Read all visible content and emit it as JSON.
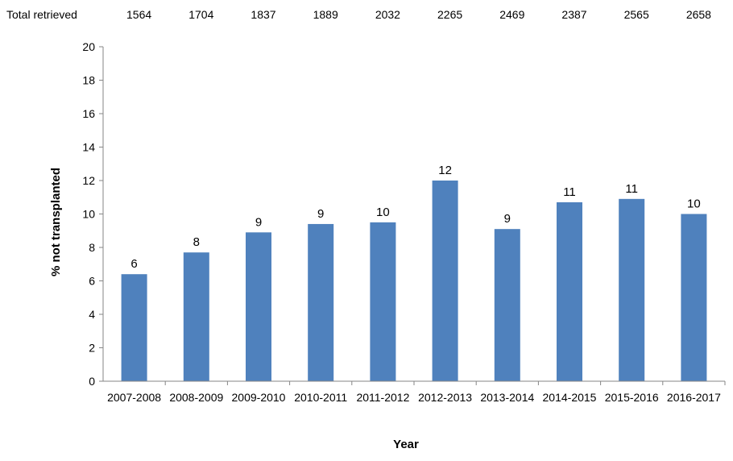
{
  "chart_data": {
    "type": "bar",
    "categories": [
      "2007-2008",
      "2008-2009",
      "2009-2010",
      "2010-2011",
      "2011-2012",
      "2012-2013",
      "2013-2014",
      "2014-2015",
      "2015-2016",
      "2016-2017"
    ],
    "values": [
      6.4,
      7.7,
      8.9,
      9.4,
      9.5,
      12.0,
      9.1,
      10.7,
      10.9,
      10.0
    ],
    "data_labels": [
      "6",
      "8",
      "9",
      "9",
      "10",
      "12",
      "9",
      "11",
      "11",
      "10"
    ],
    "totals_label": "Total retrieved",
    "totals": [
      "1564",
      "1704",
      "1837",
      "1889",
      "2032",
      "2265",
      "2469",
      "2387",
      "2565",
      "2658"
    ],
    "xlabel": "Year",
    "ylabel": "% not transplanted",
    "ylim": [
      0,
      20
    ],
    "yticks": [
      "0",
      "2",
      "4",
      "6",
      "8",
      "10",
      "12",
      "14",
      "16",
      "18",
      "20"
    ],
    "bar_color": "#4f81bd",
    "axis_color": "#868686",
    "grid": false,
    "legend": "none"
  }
}
